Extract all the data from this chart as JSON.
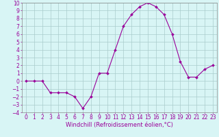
{
  "x": [
    0,
    1,
    2,
    3,
    4,
    5,
    6,
    7,
    8,
    9,
    10,
    11,
    12,
    13,
    14,
    15,
    16,
    17,
    18,
    19,
    20,
    21,
    22,
    23
  ],
  "y": [
    0.0,
    0.0,
    0.0,
    -1.5,
    -1.5,
    -1.5,
    -2.0,
    -3.5,
    -2.0,
    1.0,
    1.0,
    4.0,
    7.0,
    8.5,
    9.5,
    10.0,
    9.5,
    8.5,
    6.0,
    2.5,
    0.5,
    0.5,
    1.5,
    2.0
  ],
  "line_color": "#990099",
  "marker": "D",
  "marker_size": 2,
  "bg_color": "#d8f5f5",
  "grid_color": "#aacccc",
  "xlabel": "Windchill (Refroidissement éolien,°C)",
  "xlabel_fontsize": 6.0,
  "tick_fontsize": 5.5,
  "ylim": [
    -4,
    10
  ],
  "xlim": [
    -0.5,
    23.5
  ],
  "yticks": [
    -4,
    -3,
    -2,
    -1,
    0,
    1,
    2,
    3,
    4,
    5,
    6,
    7,
    8,
    9,
    10
  ],
  "xticks": [
    0,
    1,
    2,
    3,
    4,
    5,
    6,
    7,
    8,
    9,
    10,
    11,
    12,
    13,
    14,
    15,
    16,
    17,
    18,
    19,
    20,
    21,
    22,
    23
  ],
  "spine_color": "#888888",
  "axis_label_color": "#990099"
}
